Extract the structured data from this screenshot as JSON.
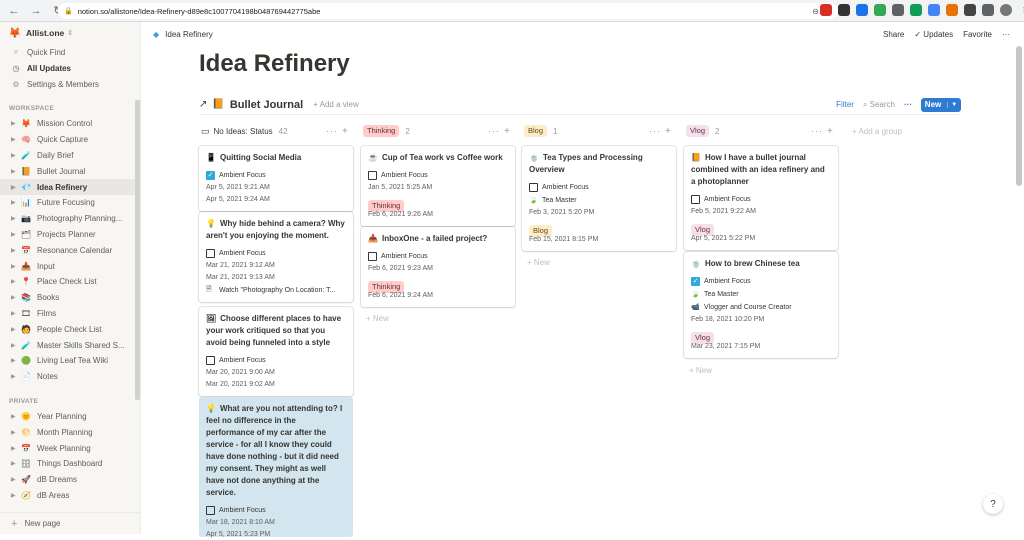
{
  "browser": {
    "url": "notion.so/allistone/Idea-Refinery-d89e8c1007704198b048769442775abe",
    "back": "←",
    "forward": "→",
    "reload": "↻",
    "lock": "🔒",
    "zoom": "⊖",
    "star": "☆"
  },
  "workspace": {
    "name": "Allist.one"
  },
  "sidebar": {
    "top": [
      {
        "label": "Quick Find",
        "icon": "search-icon"
      },
      {
        "label": "All Updates",
        "icon": "clock-icon"
      },
      {
        "label": "Settings & Members",
        "icon": "gear-icon"
      }
    ],
    "workspace_label": "WORKSPACE",
    "workspace_items": [
      {
        "label": "Mission Control",
        "glyph": "🦊"
      },
      {
        "label": "Quick Capture",
        "glyph": "🧠"
      },
      {
        "label": "Daily Brief",
        "glyph": "🧪"
      },
      {
        "label": "Bullet Journal",
        "glyph": "📙"
      },
      {
        "label": "Idea Refinery",
        "glyph": "💎"
      },
      {
        "label": "Future Focusing",
        "glyph": "📊"
      },
      {
        "label": "Photography Planning...",
        "glyph": "📷"
      },
      {
        "label": "Projects Planner",
        "glyph": "🗂"
      },
      {
        "label": "Resonance Calendar",
        "glyph": "📅"
      },
      {
        "label": "Input",
        "glyph": "📥"
      },
      {
        "label": "Place Check List",
        "glyph": "📍"
      },
      {
        "label": "Books",
        "glyph": "📚"
      },
      {
        "label": "Films",
        "glyph": "🎞"
      },
      {
        "label": "People Check List",
        "glyph": "🧑"
      },
      {
        "label": "Master Skills Shared S...",
        "glyph": "🧪"
      },
      {
        "label": "Living Leaf Tea Wiki",
        "glyph": "🟢"
      },
      {
        "label": "Notes",
        "glyph": "📄"
      }
    ],
    "private_label": "PRIVATE",
    "private_items": [
      {
        "label": "Year Planning",
        "glyph": "🌞"
      },
      {
        "label": "Month Planning",
        "glyph": "🌕"
      },
      {
        "label": "Week Planning",
        "glyph": "📅"
      },
      {
        "label": "Things Dashboard",
        "glyph": "🗄"
      },
      {
        "label": "dB Dreams",
        "glyph": "🚀"
      },
      {
        "label": "dB Areas",
        "glyph": "🧭"
      }
    ],
    "new_page": "New page"
  },
  "topbar": {
    "breadcrumb": "Idea Refinery",
    "share": "Share",
    "updates": "Updates",
    "favorite": "Favorite",
    "more": "···"
  },
  "page": {
    "title": "Idea Refinery"
  },
  "database": {
    "arrow": "↗",
    "title": "Bullet Journal",
    "add_view": "+ Add a view",
    "filter": "Filter",
    "search": "Search",
    "more": "···",
    "new": "New",
    "add_group": "+ Add a group"
  },
  "columns": [
    {
      "title": "No Ideas: Status",
      "count": "42",
      "icon": "inbox-icon"
    },
    {
      "title": "Thinking",
      "count": "2",
      "tag": "thinking"
    },
    {
      "title": "Blog",
      "count": "1",
      "tag": "blog"
    },
    {
      "title": "Vlog",
      "count": "2",
      "tag": "vlog"
    }
  ],
  "cards": {
    "c1": {
      "icon": "📱",
      "title": "Quitting Social Media",
      "prop": "Ambient Focus",
      "d1": "Apr 5, 2021 9:21 AM",
      "d2": "Apr 5, 2021 9:24 AM"
    },
    "c2": {
      "icon": "💡",
      "title": "Why hide behind a camera? Why aren't you enjoying the moment.",
      "prop": "Ambient Focus",
      "d1": "Mar 21, 2021 9:12 AM",
      "d2": "Mar 21, 2021 9:13 AM",
      "rel": "Watch \"Photography On Location: T..."
    },
    "c3": {
      "icon": "🖼",
      "title": "Choose different places to have your work critiqued so that you avoid being funneled into a style",
      "prop": "Ambient Focus",
      "d1": "Mar 20, 2021 9:00 AM",
      "d2": "Mar 20, 2021 9:02 AM"
    },
    "c4": {
      "icon": "💡",
      "title": "What are you not attending to? I feel no difference in the performance of my car after the service - for all I know they could have done nothing - but it did need my consent. They might as well have not done anything at the service.",
      "prop": "Ambient Focus",
      "d1": "Mar 18, 2021 8:10 AM",
      "d2": "Apr 5, 2021 5:23 PM"
    },
    "t1": {
      "icon": "☕",
      "title": "Cup of Tea work vs Coffee work",
      "prop": "Ambient Focus",
      "d1": "Jan 5, 2021 5:25 AM",
      "tag": "Thinking",
      "d2": "Feb 6, 2021 9:26 AM"
    },
    "t2": {
      "icon": "📥",
      "title": "InboxOne - a failed project?",
      "prop": "Ambient Focus",
      "d1": "Feb 6, 2021 9:23 AM",
      "tag": "Thinking",
      "d2": "Feb 6, 2021 9:24 AM"
    },
    "b1": {
      "icon": "🍵",
      "title": "Tea Types and Processing Overview",
      "prop": "Ambient Focus",
      "rel": "Tea Master",
      "d1": "Feb 3, 2021 5:20 PM",
      "tag": "Blog",
      "d2": "Feb 15, 2021 8:15 PM"
    },
    "v1": {
      "icon": "📙",
      "title": "How I have a bullet journal combined with an idea refinery and a photoplanner",
      "prop": "Ambient Focus",
      "d1": "Feb 5, 2021 9:22 AM",
      "tag": "Vlog",
      "d2": "Apr 5, 2021 5:22 PM"
    },
    "v2": {
      "icon": "🍵",
      "title": "How to brew Chinese tea",
      "prop": "Ambient Focus",
      "rel1": "Tea Master",
      "rel2": "Vlogger and Course Creator",
      "d1": "Feb 18, 2021 10:20 PM",
      "tag": "Vlog",
      "d2": "Mar 23, 2021 7:15 PM"
    }
  },
  "new_label": "+ New",
  "help": "?"
}
